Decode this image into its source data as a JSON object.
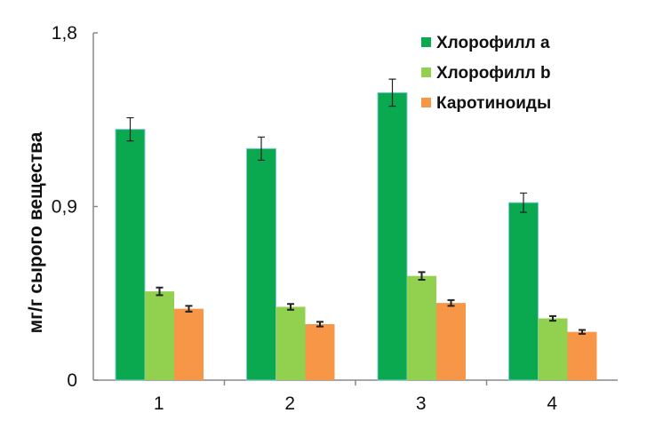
{
  "chart_data": {
    "type": "bar",
    "title": "",
    "xlabel": "",
    "ylabel": "мг/г сырого вещества",
    "ylim": [
      0,
      1.8
    ],
    "yticks": [
      {
        "v": 0,
        "label": "0"
      },
      {
        "v": 0.9,
        "label": "0,9"
      },
      {
        "v": 1.8,
        "label": "1,8"
      }
    ],
    "categories": [
      "1",
      "2",
      "3",
      "4"
    ],
    "legend_position": "top-right",
    "grid": false,
    "series": [
      {
        "name": "Хлорофилл a",
        "color": "#0aa84f",
        "values": [
          1.3,
          1.2,
          1.49,
          0.92
        ],
        "errors": [
          0.06,
          0.06,
          0.07,
          0.05
        ]
      },
      {
        "name": "Хлорофилл b",
        "color": "#92d050",
        "values": [
          0.46,
          0.38,
          0.54,
          0.32
        ],
        "errors": [
          0.02,
          0.015,
          0.02,
          0.012
        ]
      },
      {
        "name": "Каротиноиды",
        "color": "#f79646",
        "values": [
          0.37,
          0.29,
          0.4,
          0.25
        ],
        "errors": [
          0.015,
          0.012,
          0.015,
          0.01
        ]
      }
    ]
  }
}
